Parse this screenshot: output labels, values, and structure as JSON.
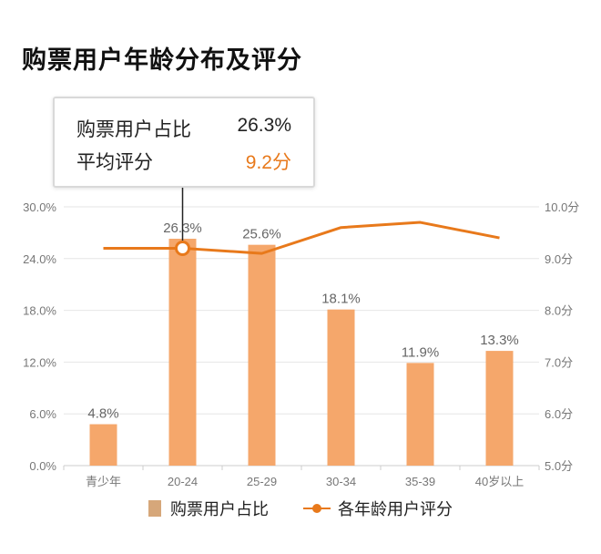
{
  "title": "购票用户年龄分布及评分",
  "tooltip": {
    "share_label": "购票用户占比",
    "share_value": "26.3%",
    "score_label": "平均评分",
    "score_value": "9.2分"
  },
  "legend": {
    "bar_label": "购票用户占比",
    "line_label": "各年龄用户评分"
  },
  "colors": {
    "bar": "#f5a76b",
    "line": "#e8791b",
    "grid": "#e6e6e6",
    "axis_text": "#777777",
    "data_label": "#666666"
  },
  "chart_data": {
    "type": "bar",
    "title": "购票用户年龄分布及评分",
    "categories": [
      "青少年",
      "20-24",
      "25-29",
      "30-34",
      "35-39",
      "40岁以上"
    ],
    "series": [
      {
        "name": "购票用户占比",
        "type": "bar",
        "axis": "left",
        "values": [
          4.8,
          26.3,
          25.6,
          18.1,
          11.9,
          13.3
        ],
        "labels": [
          "4.8%",
          "26.3%",
          "25.6%",
          "18.1%",
          "11.9%",
          "13.3%"
        ]
      },
      {
        "name": "各年龄用户评分",
        "type": "line",
        "axis": "right",
        "values": [
          9.2,
          9.2,
          9.1,
          9.6,
          9.7,
          9.4
        ]
      }
    ],
    "y_left": {
      "min": 0,
      "max": 30,
      "ticks": [
        "0.0%",
        "6.0%",
        "12.0%",
        "18.0%",
        "24.0%",
        "30.0%"
      ]
    },
    "y_right": {
      "min": 5,
      "max": 10,
      "ticks": [
        "5.0分",
        "6.0分",
        "7.0分",
        "8.0分",
        "9.0分",
        "10.0分"
      ]
    },
    "highlight_index": 1,
    "grid": true,
    "legend_position": "bottom"
  }
}
